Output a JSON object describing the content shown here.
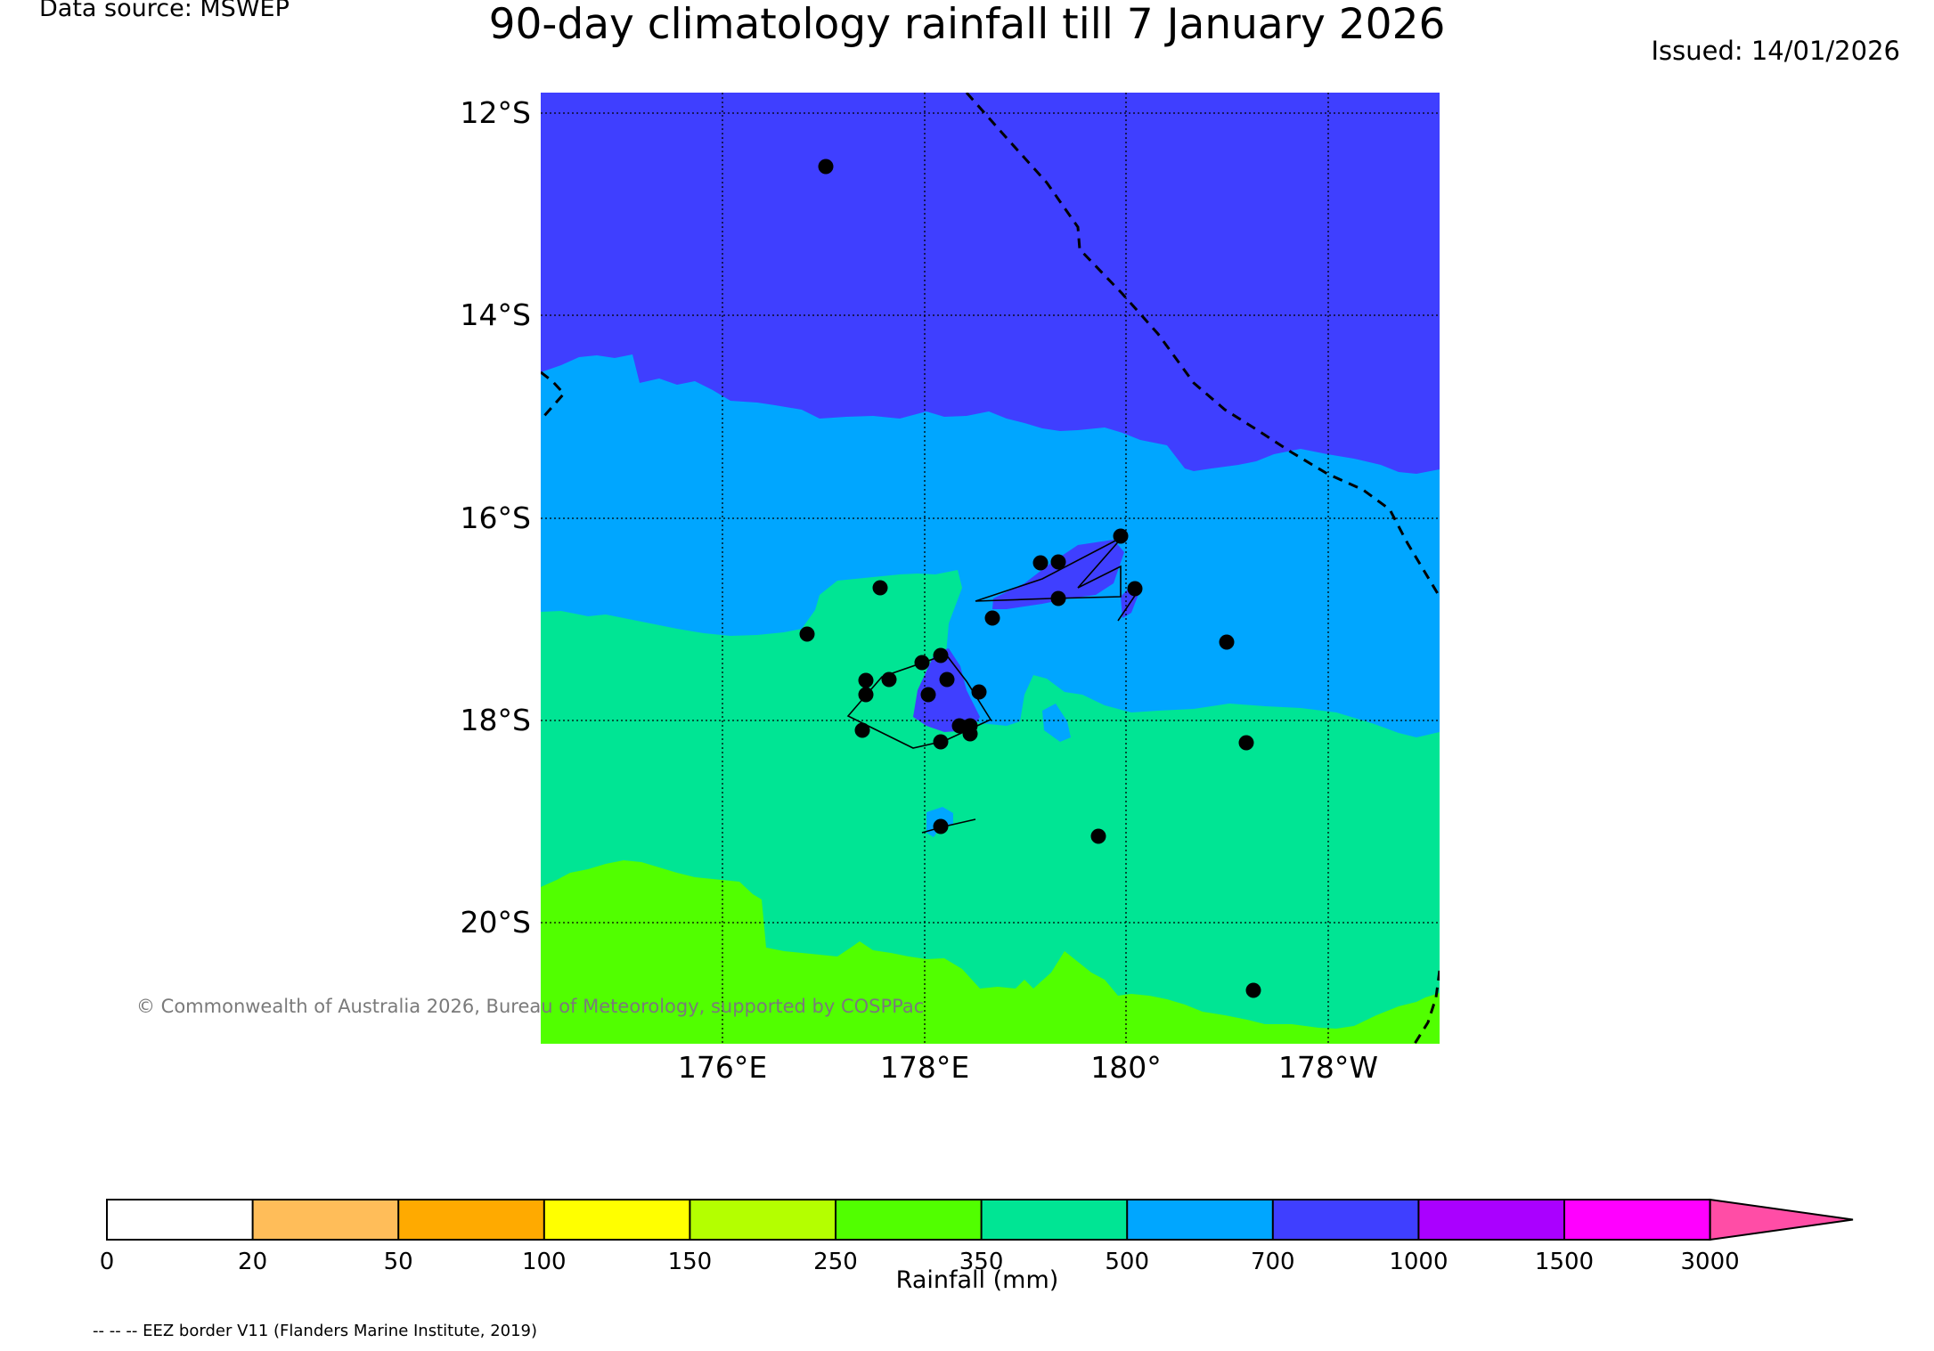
{
  "header": {
    "data_source": "Data source: MSWEP",
    "title": "90-day climatology rainfall till 7 January 2026",
    "issued": "Issued: 14/01/2026"
  },
  "map": {
    "lat_labels": [
      "12°S",
      "14°S",
      "16°S",
      "18°S",
      "20°S"
    ],
    "lon_labels": [
      "176°E",
      "178°E",
      "180°",
      "178°W"
    ],
    "copyright": "© Commonwealth of Australia 2026, Bureau of Meteorology, supported by COSPPac",
    "colors": {
      "band_700_1000": "#3f3fff",
      "band_500_700": "#00a6ff",
      "band_350_500": "#00e594",
      "band_250_350": "#51ff00"
    }
  },
  "colorbar": {
    "title": "Rainfall (mm)",
    "ticks": [
      "0",
      "20",
      "50",
      "100",
      "150",
      "250",
      "350",
      "500",
      "700",
      "1000",
      "1500",
      "3000"
    ],
    "colors": [
      "#ffffff",
      "#ffbd59",
      "#ffaa00",
      "#ffff00",
      "#b4ff00",
      "#51ff00",
      "#00e594",
      "#00a6ff",
      "#3f3fff",
      "#aa00ff",
      "#ff00ff",
      "#ff4da6"
    ]
  },
  "footer": {
    "eez_note": "-- -- -- EEZ border V11 (Flanders Marine Institute, 2019)"
  }
}
